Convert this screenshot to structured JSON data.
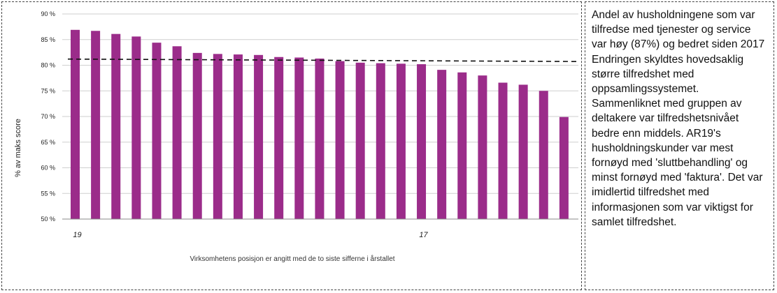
{
  "note": {
    "text": "Andel av husholdningene som var tilfredse med tjenester og service var høy (87%) og bedret siden 2017 Endringen skyldtes hovedsaklig større tilfredshet med oppsamlingssystemet. Sammenliknet med gruppen av deltakere var tilfredshetsnivået bedre enn middels. AR19's husholdningskunder var mest fornøyd med 'sluttbehandling' og minst fornøyd med 'faktura'. Det var imidlertid tilfredshet med informasjonen som var viktigst for samlet tilfredshet."
  },
  "chart_data": {
    "type": "bar",
    "ylabel": "% av maks score",
    "xlabel": "Virksomhetens posisjon er angitt med de to siste sifferne i årstallet",
    "ylim": [
      50,
      90
    ],
    "yticks": [
      "50 %",
      "55 %",
      "60 %",
      "65 %",
      "70 %",
      "75 %",
      "80 %",
      "85 %",
      "90 %"
    ],
    "values": [
      86.9,
      86.7,
      86.1,
      85.6,
      84.4,
      83.7,
      82.4,
      82.2,
      82.1,
      82.0,
      81.6,
      81.5,
      81.3,
      80.8,
      80.5,
      80.4,
      80.3,
      80.2,
      79.1,
      78.6,
      78.0,
      76.6,
      76.2,
      75.0,
      69.9
    ],
    "category_labels": [
      {
        "index": 0,
        "label": "19"
      },
      {
        "index": 17,
        "label": "17"
      }
    ],
    "reference_line": {
      "value": 81.2,
      "style": "dashed"
    },
    "grid": true,
    "bar_color": "#9b2c8a"
  }
}
